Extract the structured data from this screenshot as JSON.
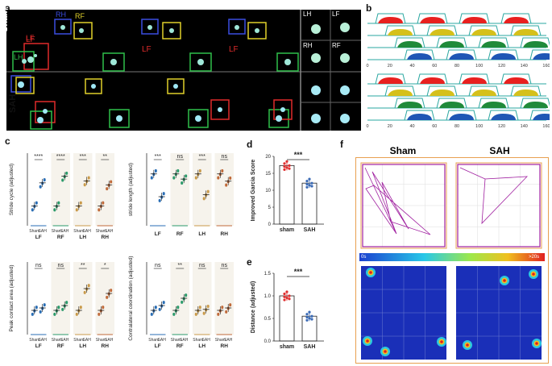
{
  "panels": {
    "a": "a",
    "b": "b",
    "c": "c",
    "d": "d",
    "e": "e",
    "f": "f"
  },
  "panel_a": {
    "rows": [
      "Sham",
      "SAH"
    ],
    "paw_labels": [
      "LH",
      "RH",
      "LF",
      "RF"
    ],
    "thumb_labels": [
      "LH",
      "LF",
      "RH",
      "RF"
    ]
  },
  "panel_b": {
    "top_ticks": [
      "0",
      "20",
      "40",
      "60",
      "80",
      "100",
      "120",
      "140",
      "160"
    ],
    "bottom_ticks": [
      "0",
      "20",
      "40",
      "60",
      "80",
      "100",
      "120",
      "140",
      "160"
    ],
    "colors": {
      "lf": "#e8201f",
      "rf": "#d5c01b",
      "lh": "#1f8a3a",
      "rh": "#1f56b5"
    }
  },
  "chart_data": [
    {
      "id": "c1",
      "type": "scatter",
      "ylabel": "Stride cycle (adjusted)",
      "groups": [
        "LF",
        "RF",
        "LH",
        "RH"
      ],
      "sublabels": [
        "Sham",
        "SAH"
      ],
      "significance": [
        "****",
        "****",
        "***",
        "**"
      ],
      "sham_means": [
        1.0,
        1.0,
        1.0,
        1.0
      ],
      "sah_means": [
        1.35,
        1.45,
        1.38,
        1.32
      ],
      "ylim": [
        0.7,
        1.8
      ]
    },
    {
      "id": "c2",
      "type": "scatter",
      "ylabel": "stride length (adjusted)",
      "groups": [
        "LF",
        "RF",
        "LH",
        "RH"
      ],
      "significance": [
        "***",
        "ns",
        "***",
        "ns"
      ],
      "sham_means": [
        1.0,
        1.0,
        1.0,
        1.0
      ],
      "sah_means": [
        0.78,
        0.95,
        0.8,
        0.93
      ],
      "ylim": [
        0.5,
        1.2
      ]
    },
    {
      "id": "c3",
      "type": "scatter",
      "ylabel": "Peak contact area (adjusted)",
      "groups": [
        "LF",
        "RF",
        "LH",
        "RH"
      ],
      "significance": [
        "ns",
        "ns",
        "**",
        "*"
      ],
      "sham_means": [
        1.0,
        1.0,
        1.0,
        1.0
      ],
      "sah_means": [
        1.05,
        1.1,
        1.45,
        1.35
      ],
      "ylim": [
        0.5,
        2.0
      ]
    },
    {
      "id": "c4",
      "type": "scatter",
      "ylabel": "Contralateral coordination (adjusted)",
      "groups": [
        "LF",
        "RF",
        "LH",
        "RH"
      ],
      "significance": [
        "ns",
        "**",
        "ns",
        "ns"
      ],
      "sham_means": [
        1.0,
        1.0,
        1.0,
        1.0
      ],
      "sah_means": [
        1.1,
        1.25,
        1.02,
        1.05
      ],
      "ylim": [
        0.5,
        2.0
      ]
    },
    {
      "id": "d",
      "type": "bar",
      "ylabel": "Improved Garcia Score",
      "categories": [
        "sham",
        "SAH"
      ],
      "values": [
        17.3,
        12.1
      ],
      "ylim": [
        0,
        20
      ],
      "yticks": [
        "0",
        "5",
        "10",
        "15",
        "20"
      ],
      "significance": "***"
    },
    {
      "id": "e",
      "type": "bar",
      "ylabel": "Distance (adjusted)",
      "categories": [
        "sham",
        "SAH"
      ],
      "values": [
        1.0,
        0.55
      ],
      "ylim": [
        0,
        1.5
      ],
      "yticks": [
        "0.0",
        "0.5",
        "1.0",
        "1.5"
      ],
      "significance": "***"
    }
  ],
  "panel_f": {
    "titles": [
      "Sham",
      "SAH"
    ],
    "colorbar_min": "0s",
    "colorbar_max": ">20s"
  }
}
